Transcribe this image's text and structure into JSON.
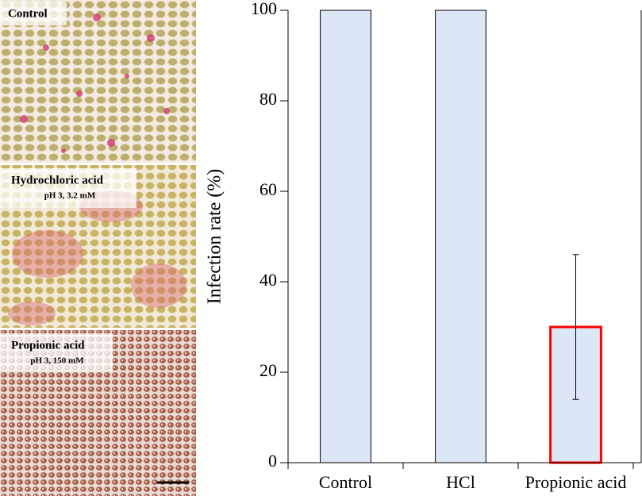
{
  "panels": [
    {
      "title": "Control"
    },
    {
      "title": "Hydrochloric acid",
      "subtitle": "pH 3, 3.2 mM"
    },
    {
      "title": "Propionic acid",
      "subtitle": "pH 3, 150 mM"
    }
  ],
  "chart_data": {
    "type": "bar",
    "ylabel": "Infection rate (%)",
    "categories": [
      "Control",
      "HCl",
      "Propionic acid"
    ],
    "values": [
      100,
      100,
      30
    ],
    "errors": [
      null,
      null,
      16
    ],
    "color": "#dce6f5",
    "edgecolors": [
      "#000000",
      "#000000",
      "#ff0000"
    ],
    "linewidths": [
      1,
      1,
      3
    ],
    "ylim": [
      0,
      100
    ],
    "yticks": [
      0,
      20,
      40,
      60,
      80,
      100
    ],
    "grid": false
  }
}
